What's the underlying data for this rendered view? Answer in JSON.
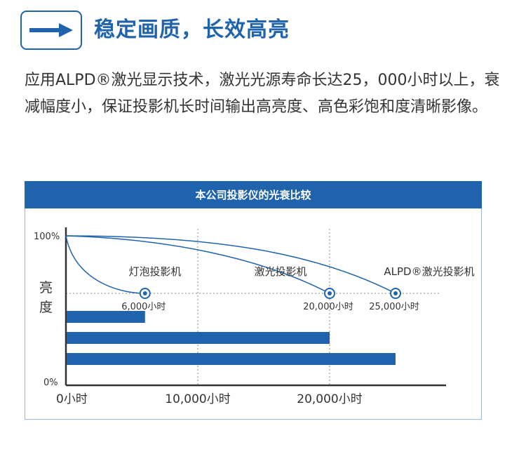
{
  "header": {
    "icon": "right-arrow-icon",
    "title": "稳定画质，长效高亮"
  },
  "description": "应用ALPD®激光显示技术，激光光源寿命长达25，000小时以上，衰减幅度小，保证投影机长时间输出高亮度、高色彩饱和度清晰影像。",
  "colors": {
    "brand": "#1f63ad",
    "text": "#333333"
  },
  "chart_data": {
    "type": "bar",
    "title": "本公司投影仪的光衰比较",
    "ylabel": "亮度",
    "y_ticks": [
      "100%",
      "0%"
    ],
    "x_ticks": [
      {
        "value": 0,
        "label": "0小时"
      },
      {
        "value": 10000,
        "label": "10,000小时"
      },
      {
        "value": 20000,
        "label": "20,000小时"
      }
    ],
    "xlim": [
      0,
      25000
    ],
    "series": [
      {
        "name": "灯泡投影机",
        "value": 6000,
        "value_label": "6,000小时"
      },
      {
        "name": "激光投影机",
        "value": 20000,
        "value_label": "20,000小时"
      },
      {
        "name": "ALPD®激光投影机",
        "value": 25000,
        "value_label": "25,000小时"
      }
    ],
    "grid": "dotted"
  }
}
